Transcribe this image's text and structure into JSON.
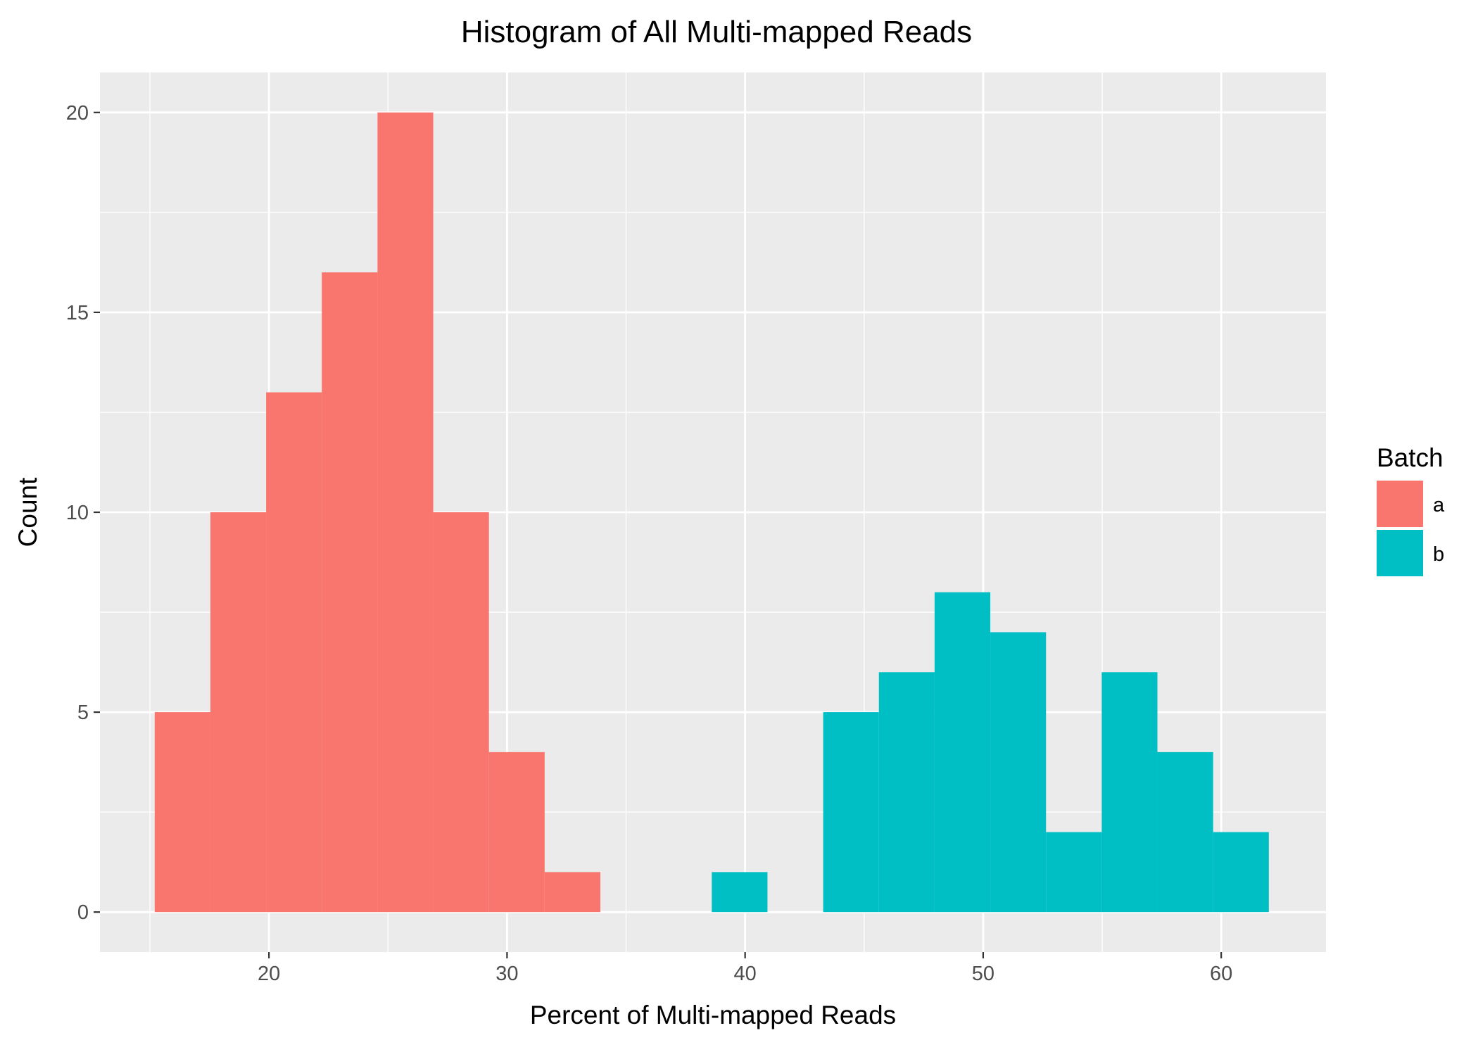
{
  "chart_data": {
    "type": "histogram",
    "title": "Histogram of All Multi-mapped Reads",
    "xlabel": "Percent of Multi-mapped Reads",
    "ylabel": "Count",
    "xlim": [
      12.9,
      64.4
    ],
    "ylim": [
      -1,
      21
    ],
    "x_ticks": [
      20,
      30,
      40,
      50,
      60
    ],
    "y_ticks": [
      0,
      5,
      10,
      15,
      20
    ],
    "bin_width": 2.34,
    "grid": true,
    "legend": {
      "title": "Batch",
      "position": "right"
    },
    "series": [
      {
        "name": "a",
        "color": "#F8766D",
        "bins": [
          {
            "x0": 15.2,
            "x1": 17.54,
            "count": 5
          },
          {
            "x0": 17.54,
            "x1": 19.88,
            "count": 10
          },
          {
            "x0": 19.88,
            "x1": 22.22,
            "count": 13
          },
          {
            "x0": 22.22,
            "x1": 24.56,
            "count": 16
          },
          {
            "x0": 24.56,
            "x1": 26.9,
            "count": 20
          },
          {
            "x0": 26.9,
            "x1": 29.24,
            "count": 10
          },
          {
            "x0": 29.24,
            "x1": 31.58,
            "count": 4
          },
          {
            "x0": 31.58,
            "x1": 33.92,
            "count": 1
          }
        ]
      },
      {
        "name": "b",
        "color": "#00BFC4",
        "bins": [
          {
            "x0": 38.6,
            "x1": 40.94,
            "count": 1
          },
          {
            "x0": 43.28,
            "x1": 45.62,
            "count": 5
          },
          {
            "x0": 45.62,
            "x1": 47.96,
            "count": 6
          },
          {
            "x0": 47.96,
            "x1": 50.3,
            "count": 8
          },
          {
            "x0": 50.3,
            "x1": 52.64,
            "count": 7
          },
          {
            "x0": 52.64,
            "x1": 54.98,
            "count": 2
          },
          {
            "x0": 54.98,
            "x1": 57.32,
            "count": 6
          },
          {
            "x0": 57.32,
            "x1": 59.66,
            "count": 4
          },
          {
            "x0": 59.66,
            "x1": 62.0,
            "count": 2
          }
        ]
      }
    ],
    "style": {
      "panel_background": "#EBEBEB",
      "grid_color": "#FFFFFF",
      "tick_color": "#333333",
      "tick_label_color": "#4D4D4D"
    }
  }
}
